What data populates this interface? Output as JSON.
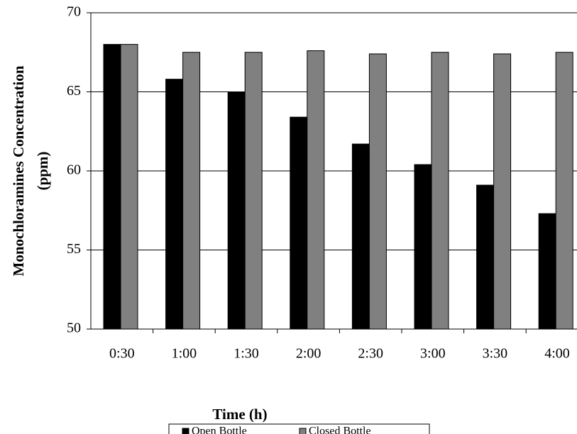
{
  "chart_data": {
    "type": "bar",
    "x_label": "Time (h)",
    "y_label": [
      "Monochloramines Concentration",
      "(ppm)"
    ],
    "categories": [
      "0:30",
      "1:00",
      "1:30",
      "2:00",
      "2:30",
      "3:00",
      "3:30",
      "4:00"
    ],
    "series": [
      {
        "name": "Open Bottle",
        "color": "#000000",
        "values": [
          68.0,
          65.8,
          65.0,
          63.4,
          61.7,
          60.4,
          59.1,
          57.3
        ]
      },
      {
        "name": "Closed Bottle",
        "color": "#808080",
        "values": [
          68.0,
          67.5,
          67.5,
          67.6,
          67.4,
          67.5,
          67.4,
          67.5
        ]
      }
    ],
    "ylim": [
      50,
      70
    ],
    "yticks": [
      50,
      55,
      60,
      65,
      70
    ],
    "grid": true,
    "legend": "bottom"
  }
}
